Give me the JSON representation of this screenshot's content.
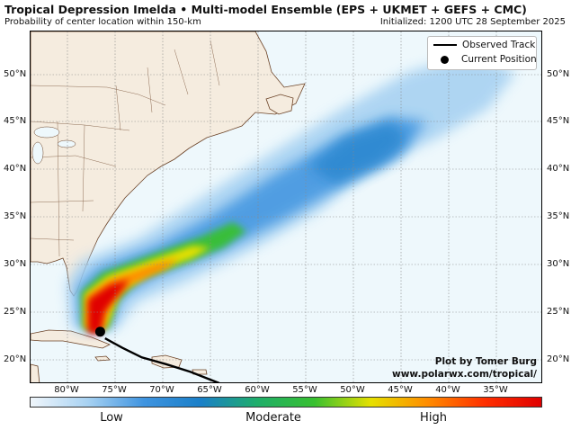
{
  "header": {
    "title": "Tropical Depression Imelda • Multi-model Ensemble (EPS + UKMET + GEFS + CMC)",
    "subtitle": "Probability of center location within 150-km",
    "initialized": "Initialized: 1200 UTC 28 September 2025"
  },
  "map": {
    "lat_labels": [
      "50°N",
      "45°N",
      "40°N",
      "35°N",
      "30°N",
      "25°N",
      "20°N"
    ],
    "lon_labels": [
      "80°W",
      "75°W",
      "70°W",
      "65°W",
      "60°W",
      "55°W",
      "50°W",
      "45°W",
      "40°W",
      "35°W"
    ],
    "lat_range": [
      17.5,
      54.5
    ],
    "lon_range": [
      -85,
      -32
    ],
    "current_position": {
      "lat": 23.0,
      "lon": -77.8
    },
    "observed_track": [
      {
        "lat": 22.3,
        "lon": -77.3
      },
      {
        "lat": 21.3,
        "lon": -75.5
      },
      {
        "lat": 20.3,
        "lon": -73.5
      },
      {
        "lat": 19.6,
        "lon": -71.0
      },
      {
        "lat": 18.8,
        "lon": -68.5
      },
      {
        "lat": 17.6,
        "lon": -65.5
      }
    ],
    "colors": {
      "ocean": "#eef8fc",
      "land": "#f5ecdf",
      "border": "#6b4226",
      "grid": "#888888"
    }
  },
  "legend": {
    "observed_track": "Observed Track",
    "current_position": "Current Position"
  },
  "credit": {
    "line1": "Plot by Tomer Burg",
    "line2": "www.polarwx.com/tropical/"
  },
  "colorbar": {
    "low": "Low",
    "moderate": "Moderate",
    "high": "High",
    "colors": [
      "#f0f6fb",
      "#a8d2f2",
      "#3f94e0",
      "#1a7fc8",
      "#1fae6a",
      "#38c030",
      "#e6e000",
      "#ff8c00",
      "#ff3000",
      "#e00000"
    ]
  }
}
